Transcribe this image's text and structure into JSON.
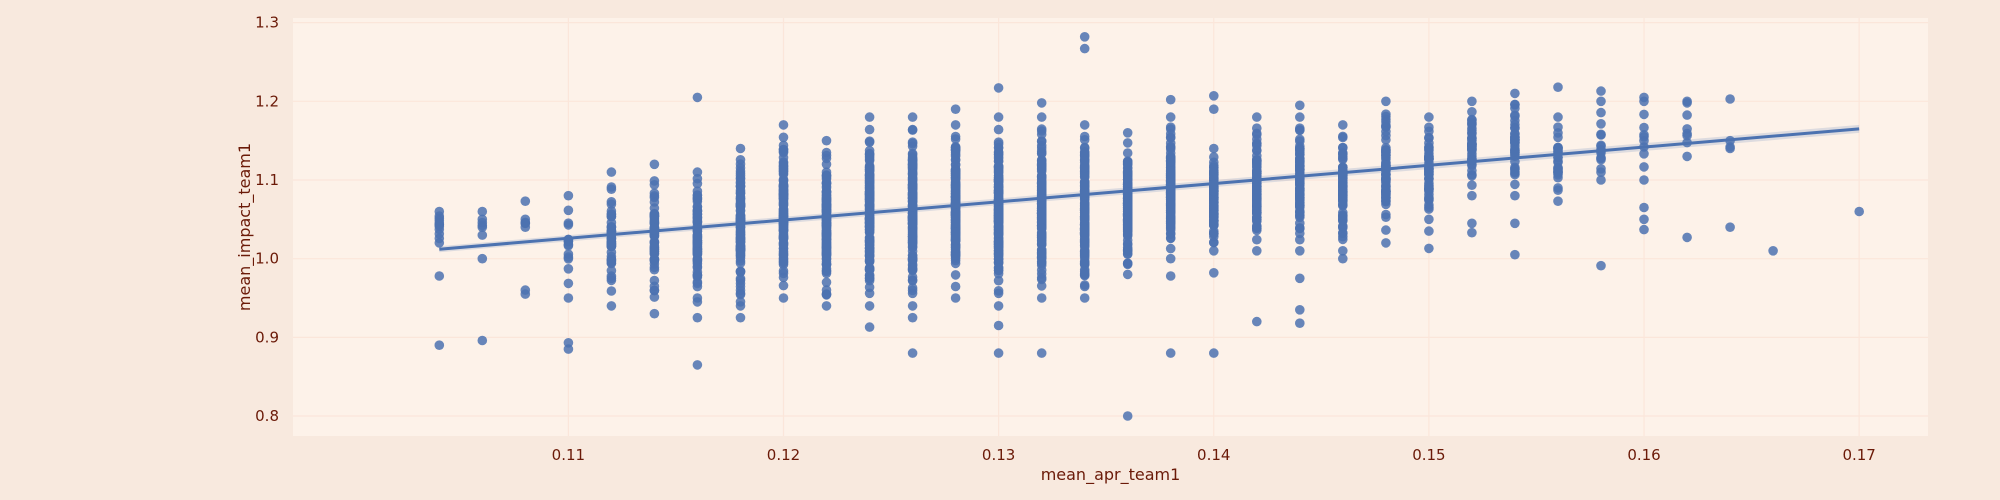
{
  "chart_data": {
    "type": "scatter",
    "title": "",
    "xlabel": "mean_apr_team1",
    "ylabel": "mean_impact_team1",
    "xlim": [
      0.0972,
      0.1732
    ],
    "ylim": [
      0.7746,
      1.3059
    ],
    "xticks": [
      0.11,
      0.12,
      0.13,
      0.14,
      0.15,
      0.16,
      0.17
    ],
    "yticks": [
      0.8,
      0.9,
      1.0,
      1.1,
      1.2,
      1.3
    ],
    "grid": true,
    "legend": "none",
    "colors": {
      "figure_bg": "#f8e9de",
      "plot_bg": "#fdf2e9",
      "grid": "#fbe6da",
      "points": "#4c72b0",
      "line": "#4c72b0",
      "text": "#6b1a08"
    },
    "regression_line": {
      "x": [
        0.104,
        0.17
      ],
      "y": [
        1.012,
        1.165
      ]
    },
    "column_ranges": [
      {
        "x": 0.104,
        "y_min": 1.02,
        "y_max": 1.06,
        "n": 8,
        "count": 12
      },
      {
        "x": 0.106,
        "y_min": 1.03,
        "y_max": 1.06,
        "n": 4,
        "count": 6
      },
      {
        "x": 0.108,
        "y_min": 1.04,
        "y_max": 1.05,
        "n": 3,
        "count": 5
      },
      {
        "x": 0.11,
        "y_min": 0.95,
        "y_max": 1.08,
        "n": 8,
        "count": 16
      },
      {
        "x": 0.112,
        "y_min": 0.94,
        "y_max": 1.11,
        "n": 10,
        "count": 50
      },
      {
        "x": 0.114,
        "y_min": 0.93,
        "y_max": 1.12,
        "n": 10,
        "count": 60
      },
      {
        "x": 0.116,
        "y_min": 0.95,
        "y_max": 1.11,
        "n": 12,
        "count": 80
      },
      {
        "x": 0.118,
        "y_min": 0.94,
        "y_max": 1.14,
        "n": 15,
        "count": 110
      },
      {
        "x": 0.12,
        "y_min": 0.95,
        "y_max": 1.17,
        "n": 15,
        "count": 120
      },
      {
        "x": 0.122,
        "y_min": 0.94,
        "y_max": 1.15,
        "n": 15,
        "count": 140
      },
      {
        "x": 0.124,
        "y_min": 0.94,
        "y_max": 1.18,
        "n": 16,
        "count": 160
      },
      {
        "x": 0.126,
        "y_min": 0.94,
        "y_max": 1.18,
        "n": 16,
        "count": 170
      },
      {
        "x": 0.128,
        "y_min": 0.95,
        "y_max": 1.17,
        "n": 16,
        "count": 180
      },
      {
        "x": 0.13,
        "y_min": 0.94,
        "y_max": 1.18,
        "n": 16,
        "count": 180
      },
      {
        "x": 0.132,
        "y_min": 0.95,
        "y_max": 1.18,
        "n": 16,
        "count": 170
      },
      {
        "x": 0.134,
        "y_min": 0.95,
        "y_max": 1.17,
        "n": 16,
        "count": 160
      },
      {
        "x": 0.136,
        "y_min": 0.98,
        "y_max": 1.16,
        "n": 15,
        "count": 150
      },
      {
        "x": 0.138,
        "y_min": 1.0,
        "y_max": 1.18,
        "n": 15,
        "count": 130
      },
      {
        "x": 0.14,
        "y_min": 1.01,
        "y_max": 1.14,
        "n": 13,
        "count": 110
      },
      {
        "x": 0.142,
        "y_min": 1.01,
        "y_max": 1.18,
        "n": 13,
        "count": 100
      },
      {
        "x": 0.144,
        "y_min": 1.01,
        "y_max": 1.18,
        "n": 13,
        "count": 90
      },
      {
        "x": 0.146,
        "y_min": 1.01,
        "y_max": 1.17,
        "n": 12,
        "count": 80
      },
      {
        "x": 0.148,
        "y_min": 1.02,
        "y_max": 1.2,
        "n": 12,
        "count": 70
      },
      {
        "x": 0.15,
        "y_min": 1.05,
        "y_max": 1.18,
        "n": 11,
        "count": 55
      },
      {
        "x": 0.152,
        "y_min": 1.08,
        "y_max": 1.2,
        "n": 10,
        "count": 45
      },
      {
        "x": 0.154,
        "y_min": 1.08,
        "y_max": 1.21,
        "n": 10,
        "count": 40
      },
      {
        "x": 0.156,
        "y_min": 1.09,
        "y_max": 1.18,
        "n": 8,
        "count": 25
      },
      {
        "x": 0.158,
        "y_min": 1.1,
        "y_max": 1.2,
        "n": 8,
        "count": 16
      },
      {
        "x": 0.16,
        "y_min": 1.1,
        "y_max": 1.2,
        "n": 7,
        "count": 10
      },
      {
        "x": 0.162,
        "y_min": 1.13,
        "y_max": 1.2,
        "n": 5,
        "count": 7
      },
      {
        "x": 0.164,
        "y_min": 1.14,
        "y_max": 1.15,
        "n": 2,
        "count": 3
      }
    ],
    "outliers": [
      [
        0.104,
        0.978
      ],
      [
        0.104,
        0.89
      ],
      [
        0.106,
        1.0
      ],
      [
        0.106,
        0.896
      ],
      [
        0.108,
        1.073
      ],
      [
        0.108,
        0.96
      ],
      [
        0.108,
        0.955
      ],
      [
        0.11,
        0.893
      ],
      [
        0.11,
        0.885
      ],
      [
        0.116,
        1.205
      ],
      [
        0.116,
        0.865
      ],
      [
        0.116,
        0.925
      ],
      [
        0.116,
        0.945
      ],
      [
        0.118,
        0.925
      ],
      [
        0.124,
        0.913
      ],
      [
        0.126,
        0.925
      ],
      [
        0.126,
        0.88
      ],
      [
        0.128,
        1.19
      ],
      [
        0.13,
        1.217
      ],
      [
        0.13,
        0.915
      ],
      [
        0.13,
        0.88
      ],
      [
        0.132,
        1.198
      ],
      [
        0.132,
        0.88
      ],
      [
        0.134,
        1.282
      ],
      [
        0.134,
        1.267
      ],
      [
        0.136,
        0.8
      ],
      [
        0.138,
        1.202
      ],
      [
        0.138,
        0.978
      ],
      [
        0.138,
        0.88
      ],
      [
        0.14,
        1.207
      ],
      [
        0.14,
        1.19
      ],
      [
        0.14,
        0.982
      ],
      [
        0.14,
        0.88
      ],
      [
        0.142,
        0.92
      ],
      [
        0.144,
        1.195
      ],
      [
        0.144,
        0.975
      ],
      [
        0.144,
        0.935
      ],
      [
        0.144,
        0.918
      ],
      [
        0.146,
        1.0
      ],
      [
        0.15,
        1.035
      ],
      [
        0.15,
        1.013
      ],
      [
        0.152,
        1.045
      ],
      [
        0.152,
        1.033
      ],
      [
        0.154,
        1.045
      ],
      [
        0.154,
        1.005
      ],
      [
        0.156,
        1.218
      ],
      [
        0.156,
        1.087
      ],
      [
        0.156,
        1.073
      ],
      [
        0.158,
        1.213
      ],
      [
        0.158,
        0.991
      ],
      [
        0.16,
        1.205
      ],
      [
        0.16,
        1.065
      ],
      [
        0.16,
        1.05
      ],
      [
        0.16,
        1.037
      ],
      [
        0.162,
        1.198
      ],
      [
        0.162,
        1.027
      ],
      [
        0.164,
        1.203
      ],
      [
        0.164,
        1.04
      ],
      [
        0.166,
        1.01
      ],
      [
        0.17,
        1.06
      ]
    ]
  }
}
